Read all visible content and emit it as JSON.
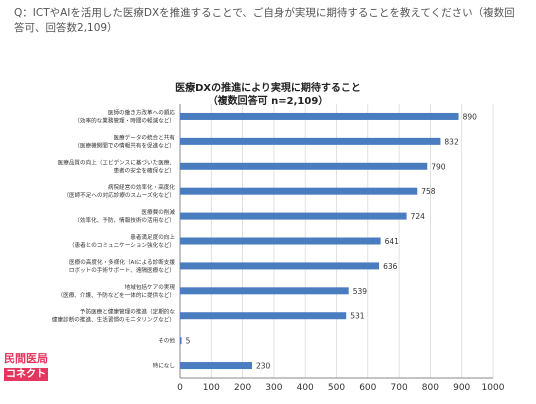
{
  "question": "Q：ICTやAIを活用した医療DXを推進することで、ご自身が実現に期待することを教えてください（複数回答可、回答数2,109）",
  "logo": {
    "line1": "民間医局",
    "line2": "コネクト"
  },
  "chart_data": {
    "type": "bar",
    "orientation": "horizontal",
    "title": "医療DXの推進により実現に期待すること",
    "subtitle": "（複数回答可 n=2,109）",
    "xlim": [
      0,
      1000
    ],
    "xticks": [
      0,
      100,
      200,
      300,
      400,
      500,
      600,
      700,
      800,
      900,
      1000
    ],
    "grid": "vertical",
    "bar_color": "#4a7dbf",
    "categories": [
      {
        "line1": "医師の働き方改革への順応",
        "line2": "（効率的な業務管理・時間の軽減など）"
      },
      {
        "line1": "医療データの統合と共有",
        "line2": "（医療機関間での情報共有を促進など）"
      },
      {
        "line1": "医療品質の向上（エビデンスに基づいた医療、",
        "line2": "患者の安全を確保など）"
      },
      {
        "line1": "病院経営の効率化・高度化",
        "line2": "（医師不足への対応診療のスムーズ化など）"
      },
      {
        "line1": "医療費の削減",
        "line2": "（効率化、予防、情報技術の活用など）"
      },
      {
        "line1": "患者満足度の向上",
        "line2": "（患者とのコミュニケーション強化など）"
      },
      {
        "line1": "医療の高度化・多様化（AIによる診断支援",
        "line2": "ロボットの手術サポート、遠隔医療など）"
      },
      {
        "line1": "地域包括ケアの実現",
        "line2": "（医療、介護、予防などを一体的に提供など）"
      },
      {
        "line1": "予防医療と健康管理の推進（定期的な",
        "line2": "健康診断の推進、生活習慣のモニタリングなど）"
      },
      {
        "line1": "その他",
        "line2": ""
      },
      {
        "line1": "特になし",
        "line2": ""
      }
    ],
    "values": [
      890,
      832,
      790,
      758,
      724,
      641,
      636,
      539,
      531,
      5,
      230
    ]
  }
}
